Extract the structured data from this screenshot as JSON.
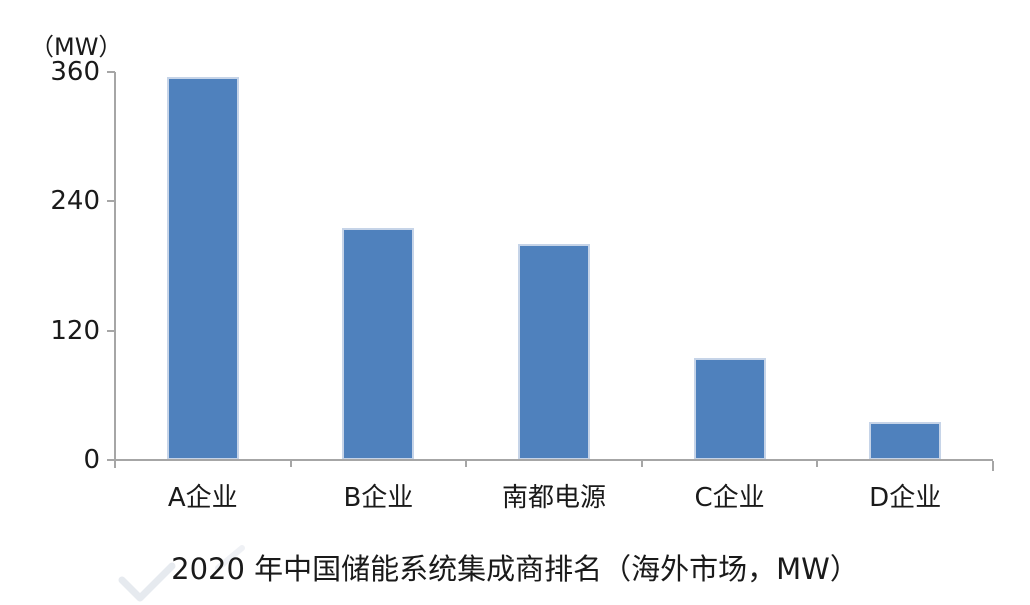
{
  "chart_data": {
    "type": "bar",
    "categories": [
      "A企业",
      "B企业",
      "南都电源",
      "C企业",
      "D企业"
    ],
    "values": [
      355,
      215,
      200,
      95,
      35
    ],
    "title": "2020 年中国储能系统集成商排名（海外市场，MW）",
    "unit_label": "（MW）",
    "xlabel": "",
    "ylabel": "MW",
    "yticks": [
      360,
      240,
      120,
      0
    ],
    "ylim": [
      0,
      360
    ],
    "grid": false,
    "legend_position": "none",
    "bar_color": "#4F81BD",
    "bar_edge_color": "#C6D4E8",
    "axis_color": "#A6A6A6",
    "text_color": "#1A1A1A"
  }
}
